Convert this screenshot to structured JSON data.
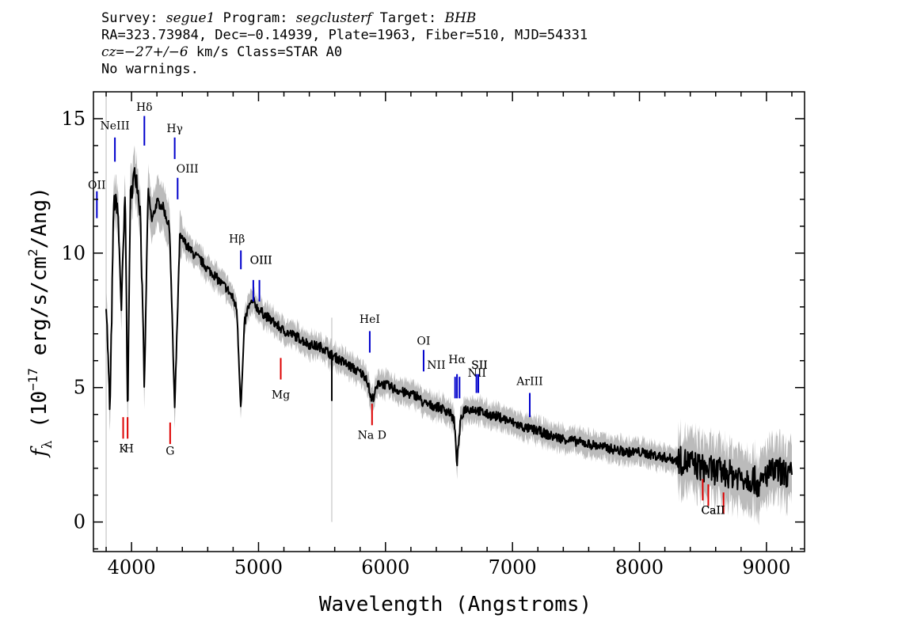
{
  "header": {
    "line1": [
      {
        "t": "Survey: ",
        "i": false
      },
      {
        "t": "segue1",
        "i": true
      },
      {
        "t": " Program: ",
        "i": false
      },
      {
        "t": "segclusterf",
        "i": true
      },
      {
        "t": " Target: ",
        "i": false
      },
      {
        "t": "BHB",
        "i": true
      }
    ],
    "line2": [
      {
        "t": "RA=323.73984, Dec=−0.14939, Plate=1963, Fiber=510, MJD=54331",
        "i": false
      }
    ],
    "line3": [
      {
        "t": "cz",
        "i": true
      },
      {
        "t": "=",
        "i": false
      },
      {
        "t": "−27+/−6",
        "i": true
      },
      {
        "t": " km/s Class=STAR A0",
        "i": false
      }
    ],
    "line4": [
      {
        "t": "No warnings.",
        "i": false
      }
    ]
  },
  "chart_data": {
    "type": "line",
    "xlabel": "Wavelength (Angstroms)",
    "ylabel_parts": {
      "f": "f",
      "sub": "λ",
      "pre": " (10",
      "exp1": "−17",
      "mid": " erg/s/cm",
      "exp2": "2",
      "post": "/Ang)"
    },
    "xlim": [
      3700,
      9300
    ],
    "ylim": [
      -1.1,
      16
    ],
    "x_ticks": [
      4000,
      5000,
      6000,
      7000,
      8000,
      9000
    ],
    "x_tick_labels": [
      "4000",
      "5000",
      "6000",
      "7000",
      "8000",
      "9000"
    ],
    "y_ticks": [
      0,
      5,
      10,
      15
    ],
    "y_tick_labels": [
      "0",
      "5",
      "10",
      "15"
    ],
    "grid": false,
    "colors": {
      "spectrum": "#000000",
      "error": "#bbbbbb",
      "emission": "#0000cc",
      "absorption": "#dd0000"
    },
    "spectrum": {
      "x": [
        3800,
        3830,
        3860,
        3890,
        3920,
        3950,
        3970,
        3990,
        4020,
        4040,
        4070,
        4101,
        4130,
        4160,
        4200,
        4250,
        4300,
        4340,
        4380,
        4420,
        4480,
        4550,
        4600,
        4650,
        4700,
        4750,
        4800,
        4830,
        4861,
        4890,
        4920,
        4960,
        5000,
        5050,
        5100,
        5150,
        5200,
        5250,
        5300,
        5400,
        5500,
        5580,
        5650,
        5750,
        5850,
        5890,
        5950,
        6050,
        6150,
        6250,
        6300,
        6400,
        6500,
        6540,
        6563,
        6590,
        6620,
        6700,
        6800,
        6900,
        7000,
        7100,
        7200,
        7300,
        7400,
        7500,
        7600,
        7700,
        7800,
        7900,
        8000,
        8100,
        8200,
        8300,
        8400,
        8500,
        8600,
        8700,
        8800,
        8900,
        8950,
        9000,
        9100,
        9200
      ],
      "y": [
        8.3,
        4.0,
        11.9,
        11.8,
        8.0,
        12.2,
        4.0,
        12.0,
        12.9,
        12.8,
        11.5,
        4.9,
        12.3,
        11.2,
        11.9,
        11.7,
        10.9,
        4.2,
        10.6,
        10.4,
        10.0,
        9.7,
        9.4,
        9.2,
        8.9,
        8.7,
        8.3,
        7.9,
        4.2,
        7.4,
        8.0,
        8.2,
        7.9,
        7.7,
        7.5,
        7.3,
        7.1,
        7.0,
        6.9,
        6.6,
        6.5,
        6.2,
        6.0,
        5.7,
        5.4,
        4.5,
        5.2,
        5.0,
        4.8,
        4.7,
        4.4,
        4.3,
        4.1,
        3.8,
        2.2,
        3.7,
        4.2,
        4.2,
        4.0,
        3.9,
        3.7,
        3.5,
        3.4,
        3.2,
        3.1,
        3.0,
        2.9,
        2.8,
        2.7,
        2.6,
        2.6,
        2.5,
        2.4,
        2.3,
        2.2,
        2.0,
        1.9,
        1.8,
        1.7,
        1.6,
        1.3,
        1.8,
        1.9,
        1.7
      ]
    },
    "emission_lines": [
      {
        "label": "OII",
        "x": 3727,
        "y": [
          11.3,
          12.3
        ],
        "tx": 3727,
        "ty": 12.4
      },
      {
        "label": "NeIII",
        "x": 3869,
        "y": [
          13.4,
          14.3
        ],
        "tx": 3869,
        "ty": 14.6
      },
      {
        "label": "Hδ",
        "x": 4101,
        "y": [
          14.0,
          15.1
        ],
        "tx": 4101,
        "ty": 15.3
      },
      {
        "label": "Hγ",
        "x": 4340,
        "y": [
          13.5,
          14.3
        ],
        "tx": 4340,
        "ty": 14.5
      },
      {
        "label": "OIII",
        "x": 4363,
        "y": [
          12.0,
          12.8
        ],
        "tx": 4440,
        "ty": 13.0
      },
      {
        "label": "Hβ",
        "x": 4861,
        "y": [
          9.4,
          10.1
        ],
        "tx": 4830,
        "ty": 10.4
      },
      {
        "label": "OIII",
        "x": 4959,
        "y": [
          8.2,
          9.0
        ],
        "tx": 5020,
        "ty": 9.6
      },
      {
        "label": "OIII",
        "x": 5007,
        "y": [
          8.2,
          9.0
        ],
        "tx": 5020,
        "ty": 9.6
      },
      {
        "label": "HeI",
        "x": 5876,
        "y": [
          6.3,
          7.1
        ],
        "tx": 5876,
        "ty": 7.4
      },
      {
        "label": "OI",
        "x": 6300,
        "y": [
          5.6,
          6.4
        ],
        "tx": 6300,
        "ty": 6.6
      },
      {
        "label": "NII",
        "x": 6548,
        "y": [
          4.6,
          5.4
        ],
        "tx": 6400,
        "ty": 5.7
      },
      {
        "label": "Hα",
        "x": 6563,
        "y": [
          4.6,
          5.5
        ],
        "tx": 6563,
        "ty": 5.9
      },
      {
        "label": "NII",
        "x": 6583,
        "y": [
          4.6,
          5.4
        ],
        "tx": 6720,
        "ty": 5.4
      },
      {
        "label": "SII",
        "x": 6716,
        "y": [
          4.8,
          5.5
        ],
        "tx": 6740,
        "ty": 5.7
      },
      {
        "label": "SII",
        "x": 6731,
        "y": [
          4.8,
          5.5
        ],
        "tx": 6740,
        "ty": 5.7
      },
      {
        "label": "ArIII",
        "x": 7136,
        "y": [
          3.9,
          4.8
        ],
        "tx": 7136,
        "ty": 5.1
      }
    ],
    "absorption_lines": [
      {
        "label": "K",
        "x": 3934,
        "y": [
          3.1,
          3.9
        ],
        "tx": 3934,
        "ty": 2.6
      },
      {
        "label": "H",
        "x": 3969,
        "y": [
          3.1,
          3.9
        ],
        "tx": 3980,
        "ty": 2.6
      },
      {
        "label": "G",
        "x": 4304,
        "y": [
          2.9,
          3.7
        ],
        "tx": 4304,
        "ty": 2.5
      },
      {
        "label": "Mg",
        "x": 5175,
        "y": [
          5.3,
          6.1
        ],
        "tx": 5175,
        "ty": 4.6
      },
      {
        "label": "Na  D",
        "x": 5894,
        "y": [
          3.6,
          4.4
        ],
        "tx": 5894,
        "ty": 3.1
      },
      {
        "label": "CaII",
        "x": 8498,
        "y": [
          0.8,
          1.6
        ],
        "tx": 8580,
        "ty": 0.3
      },
      {
        "label": "CaII",
        "x": 8542,
        "y": [
          0.6,
          1.4
        ],
        "tx": 8580,
        "ty": 0.3
      },
      {
        "label": "CaII",
        "x": 8662,
        "y": [
          0.3,
          1.1
        ],
        "tx": 8580,
        "ty": 0.3
      }
    ]
  }
}
